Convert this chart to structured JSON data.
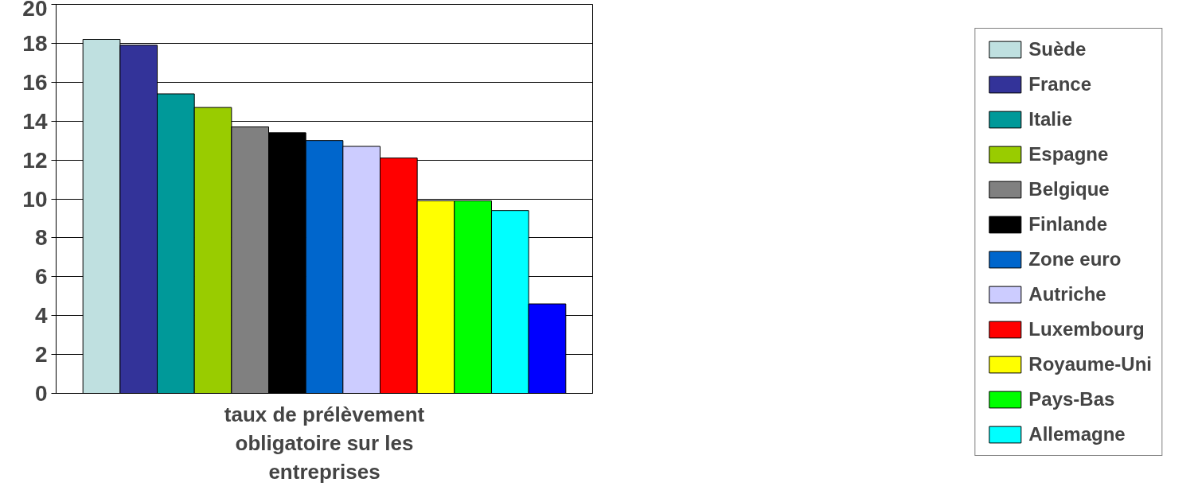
{
  "chart_data": {
    "type": "bar",
    "categories": [
      "taux de prélèvement obligatoire sur les entreprises"
    ],
    "series": [
      {
        "name": "Suède",
        "color": "#bfe0e0",
        "values": [
          18.2
        ]
      },
      {
        "name": "France",
        "color": "#333399",
        "values": [
          17.9
        ]
      },
      {
        "name": "Italie",
        "color": "#009999",
        "values": [
          15.4
        ]
      },
      {
        "name": "Espagne",
        "color": "#99cc00",
        "values": [
          14.7
        ]
      },
      {
        "name": "Belgique",
        "color": "#808080",
        "values": [
          13.7
        ]
      },
      {
        "name": "Finlande",
        "color": "#000000",
        "values": [
          13.4
        ]
      },
      {
        "name": "Zone euro",
        "color": "#0066cc",
        "values": [
          13.0
        ]
      },
      {
        "name": "Autriche",
        "color": "#ccccff",
        "values": [
          12.7
        ]
      },
      {
        "name": "Luxembourg",
        "color": "#ff0000",
        "values": [
          12.1
        ]
      },
      {
        "name": "Royaume-Uni",
        "color": "#ffff00",
        "values": [
          9.9
        ]
      },
      {
        "name": "Pays-Bas",
        "color": "#00ff00",
        "values": [
          9.9
        ]
      },
      {
        "name": "Allemagne",
        "color": "#00ffff",
        "values": [
          9.4
        ]
      },
      {
        "color": "#0000ff",
        "values": [
          4.6
        ]
      }
    ],
    "ylim": [
      0,
      20
    ],
    "yticks": [
      0,
      2,
      4,
      6,
      8,
      10,
      12,
      14,
      16,
      18,
      20
    ],
    "grid": "y",
    "legend": "right"
  }
}
